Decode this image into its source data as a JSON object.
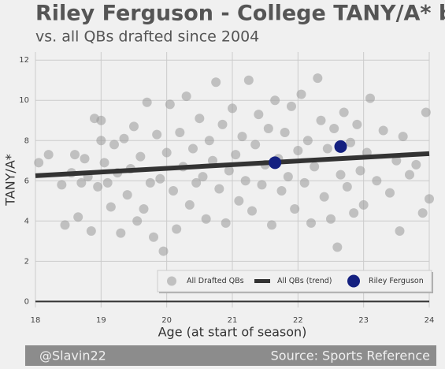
{
  "chart_data": {
    "type": "scatter",
    "title": "Riley Ferguson - College TANY/A* by Age",
    "subtitle": "vs. all QBs drafted since 2004",
    "x_label": "Age (at start of season)",
    "y_label": "TANY/A*",
    "xlim": [
      18,
      24
    ],
    "ylim": [
      -0.3,
      12.4
    ],
    "xticks": [
      18,
      19,
      20,
      21,
      22,
      23,
      24
    ],
    "yticks": [
      0,
      2,
      4,
      6,
      8,
      10,
      12
    ],
    "grid": true,
    "legend": "lower right",
    "series": [
      {
        "name": "All Drafted QBs",
        "type": "scatter",
        "color": "#999999",
        "x": [
          18.05,
          18.2,
          18.4,
          18.45,
          18.55,
          18.6,
          18.65,
          18.7,
          18.75,
          18.8,
          18.85,
          18.9,
          18.95,
          19.0,
          19.0,
          19.05,
          19.1,
          19.15,
          19.2,
          19.25,
          19.3,
          19.35,
          19.4,
          19.45,
          19.5,
          19.55,
          19.6,
          19.65,
          19.7,
          19.75,
          19.8,
          19.85,
          19.9,
          19.95,
          20.0,
          20.05,
          20.1,
          20.15,
          20.2,
          20.25,
          20.3,
          20.35,
          20.4,
          20.45,
          20.5,
          20.55,
          20.6,
          20.65,
          20.7,
          20.75,
          20.8,
          20.85,
          20.9,
          20.95,
          21.0,
          21.05,
          21.1,
          21.15,
          21.2,
          21.25,
          21.3,
          21.35,
          21.4,
          21.45,
          21.5,
          21.55,
          21.6,
          21.65,
          21.7,
          21.75,
          21.8,
          21.85,
          21.9,
          21.95,
          22.0,
          22.05,
          22.1,
          22.15,
          22.2,
          22.25,
          22.3,
          22.35,
          22.4,
          22.45,
          22.5,
          22.55,
          22.6,
          22.65,
          22.7,
          22.75,
          22.8,
          22.85,
          22.9,
          22.95,
          23.0,
          23.05,
          23.1,
          23.2,
          23.3,
          23.4,
          23.5,
          23.55,
          23.6,
          23.7,
          23.8,
          23.9,
          23.95,
          24.0
        ],
        "values": [
          6.9,
          7.3,
          5.8,
          3.8,
          6.4,
          7.3,
          4.2,
          5.9,
          7.1,
          6.2,
          3.5,
          9.1,
          5.7,
          9.0,
          8.0,
          6.9,
          5.9,
          4.7,
          7.8,
          6.4,
          3.4,
          8.1,
          5.3,
          6.6,
          8.7,
          4.0,
          7.2,
          4.6,
          9.9,
          5.9,
          3.2,
          8.3,
          6.1,
          2.5,
          7.4,
          9.8,
          5.5,
          3.6,
          8.4,
          6.7,
          10.2,
          4.8,
          7.6,
          5.9,
          9.1,
          6.2,
          4.1,
          8.0,
          7.0,
          10.9,
          5.6,
          8.8,
          3.9,
          6.5,
          9.6,
          7.3,
          5.0,
          8.2,
          6.0,
          11.0,
          4.5,
          7.8,
          9.3,
          5.8,
          6.8,
          8.6,
          3.8,
          10.0,
          7.1,
          5.5,
          8.4,
          6.2,
          9.7,
          4.6,
          7.5,
          10.3,
          5.9,
          8.0,
          3.9,
          6.7,
          11.1,
          9.0,
          5.2,
          7.6,
          4.1,
          8.6,
          2.7,
          6.3,
          9.4,
          5.7,
          7.9,
          4.4,
          8.8,
          6.5,
          4.8,
          7.4,
          10.1,
          6.0,
          8.5,
          5.4,
          7.0,
          3.5,
          8.2,
          6.3,
          6.8,
          4.4,
          9.4,
          5.1
        ]
      },
      {
        "name": "All QBs (trend)",
        "type": "line",
        "color": "#333333",
        "x": [
          18,
          24
        ],
        "values": [
          6.25,
          7.35
        ]
      },
      {
        "name": "Riley Ferguson",
        "type": "scatter",
        "color": "#142080",
        "x": [
          21.65,
          22.65
        ],
        "values": [
          6.9,
          7.7
        ]
      }
    ]
  },
  "footer": {
    "left": "@Slavin22",
    "right": "Source: Sports Reference"
  }
}
